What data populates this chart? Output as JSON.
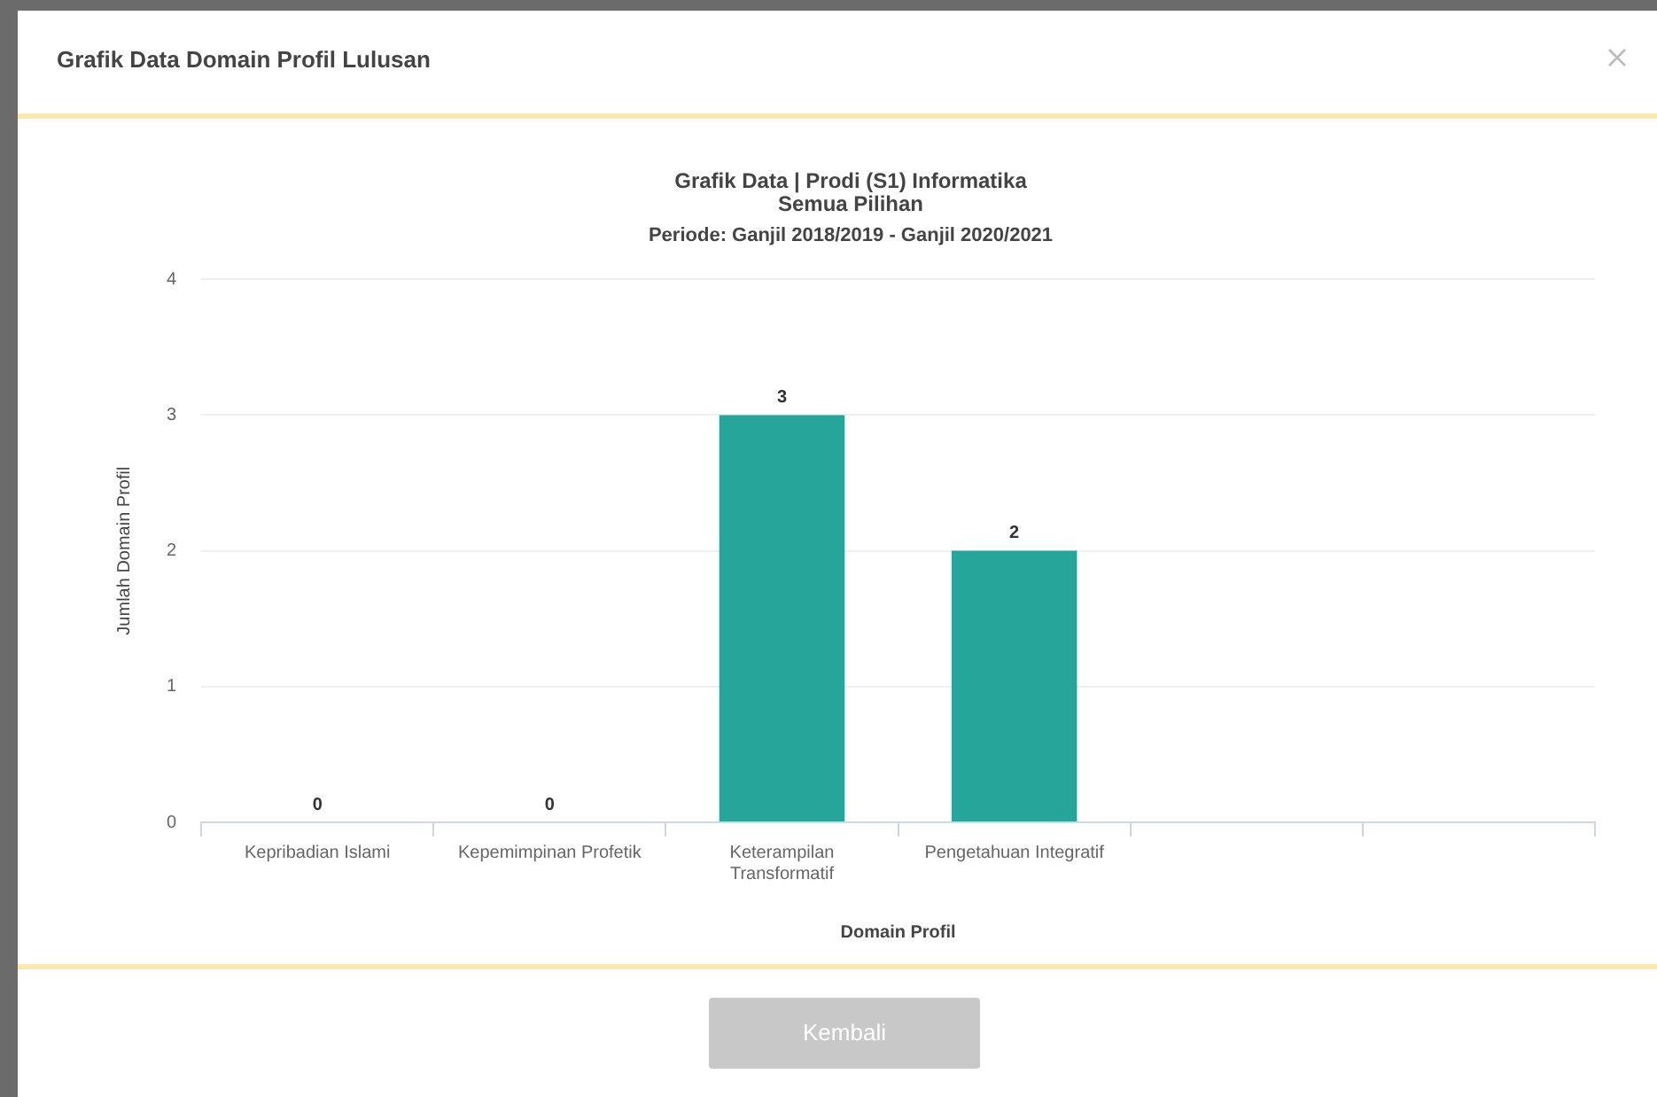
{
  "chart_data": {
    "type": "bar",
    "title": "Grafik Data Domain Profil Lulusan",
    "subtitle": "Grafik Data | Prodi (S1) Informatika",
    "annotations": [
      "Semua Pilihan",
      "Periode: Ganjil 2018/2019 - Ganjil 2020/2021",
      "Kembali"
    ],
    "xlabel": "Domain Profil",
    "ylabel": "Jumlah Domain Profil",
    "categories": [
      "Kepribadian Islami",
      "Kepemimpinan Profetik",
      "Keterampilan Transformatif",
      "Pengetahuan Integratif",
      null,
      null
    ],
    "values": [
      0,
      0,
      3,
      2,
      null,
      null
    ],
    "color": "#26a69a",
    "ylim": [
      0,
      4
    ],
    "yticks": [
      0,
      1,
      2,
      3,
      4
    ],
    "grid": "y",
    "data_labels": true,
    "legend": false
  }
}
